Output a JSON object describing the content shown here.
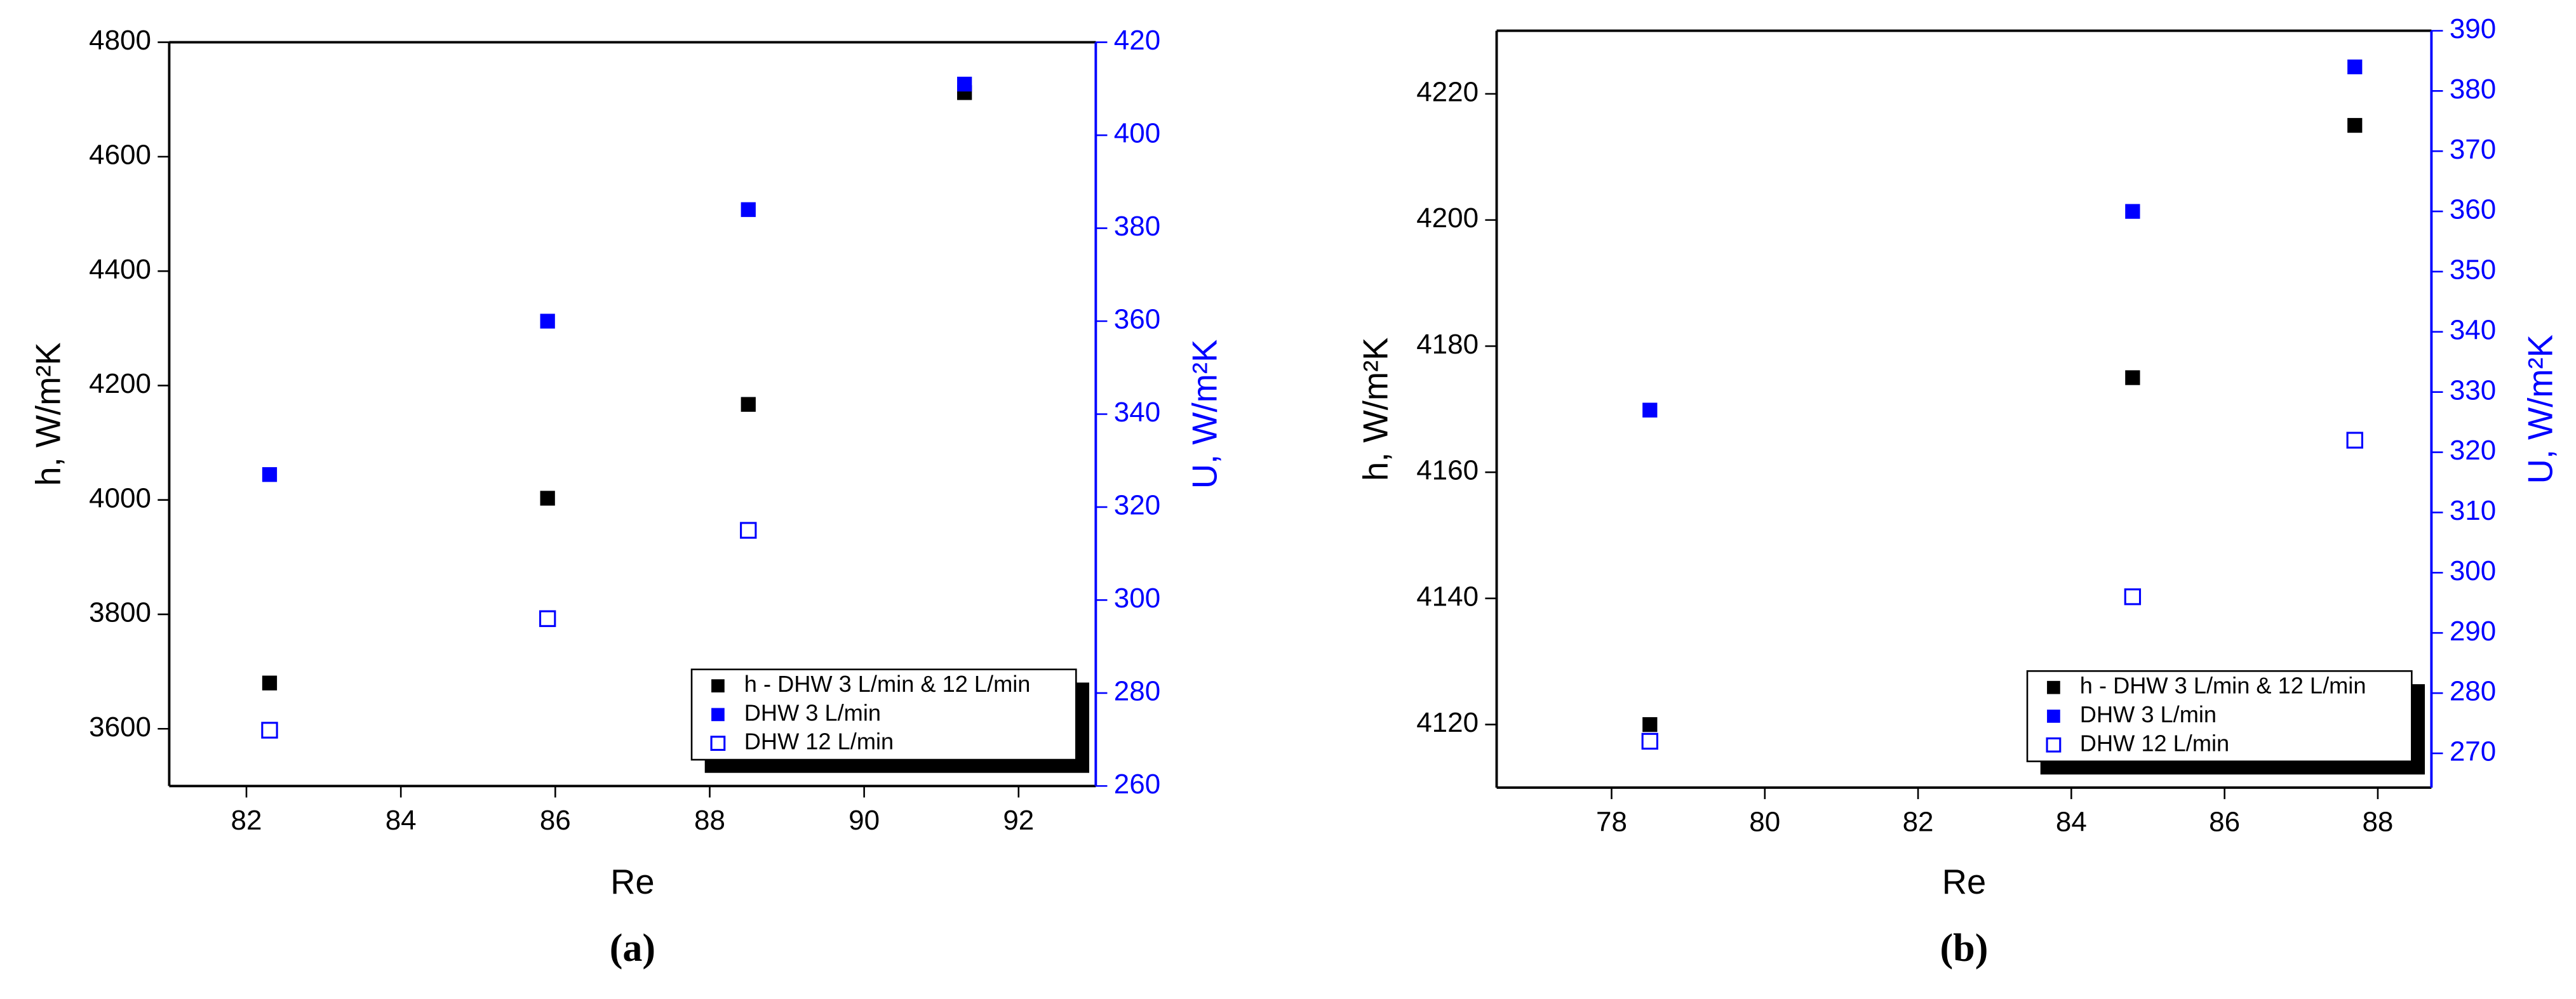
{
  "chart_data": [
    {
      "type": "scatter",
      "panel_label": "(a)",
      "x_label": "Re",
      "y_label": "h, W/m²K",
      "y2_label": "U, W/m²K",
      "xlim": [
        81,
        93
      ],
      "xticks": [
        82,
        84,
        86,
        88,
        90,
        92
      ],
      "ylim": [
        3500,
        4800
      ],
      "yticks": [
        3600,
        3800,
        4000,
        4200,
        4400,
        4600,
        4800
      ],
      "y2lim": [
        260,
        420
      ],
      "y2ticks": [
        260,
        280,
        300,
        320,
        340,
        360,
        380,
        400,
        420
      ],
      "legend": "lower right",
      "series": [
        {
          "name": "h - DHW 3 L/min & 12 L/min",
          "color": "#000000",
          "marker": "filled",
          "x": [
            82.3,
            85.9,
            88.5,
            91.3
          ],
          "values": [
            3680,
            4003,
            4167,
            4712
          ]
        },
        {
          "name": "DHW 3 L/min",
          "color": "#0000ff",
          "marker": "filled",
          "axis": "y2",
          "x": [
            82.3,
            85.9,
            88.5,
            91.3
          ],
          "values": [
            327,
            360,
            384,
            411
          ]
        },
        {
          "name": "DHW 12 L/min",
          "color": "#0000ff",
          "marker": "open",
          "axis": "y2",
          "x": [
            82.3,
            85.9,
            88.5
          ],
          "values": [
            272,
            296,
            315
          ]
        }
      ]
    },
    {
      "type": "scatter",
      "panel_label": "(b)",
      "x_label": "Re",
      "y_label": "h, W/m²K",
      "y2_label": "U, W/m²K",
      "xlim": [
        76.5,
        88.7
      ],
      "xticks": [
        78,
        80,
        82,
        84,
        86,
        88
      ],
      "ylim": [
        4110,
        4230
      ],
      "yticks": [
        4120,
        4140,
        4160,
        4180,
        4200,
        4220
      ],
      "y2lim": [
        264.3,
        390
      ],
      "y2ticks": [
        270,
        280,
        290,
        300,
        310,
        320,
        330,
        340,
        350,
        360,
        370,
        380,
        390
      ],
      "legend": "lower right",
      "series": [
        {
          "name": "h - DHW 3 L/min & 12 L/min",
          "color": "#000000",
          "marker": "filled",
          "x": [
            78.5,
            84.8,
            87.7
          ],
          "values": [
            4120,
            4175,
            4215
          ]
        },
        {
          "name": "DHW 3 L/min",
          "color": "#0000ff",
          "marker": "filled",
          "axis": "y2",
          "x": [
            78.5,
            84.8,
            87.7
          ],
          "values": [
            327,
            360,
            384
          ]
        },
        {
          "name": "DHW 12 L/min",
          "color": "#0000ff",
          "marker": "open",
          "axis": "y2",
          "x": [
            78.5,
            84.8,
            87.7
          ],
          "values": [
            272,
            296,
            322
          ]
        }
      ]
    }
  ]
}
